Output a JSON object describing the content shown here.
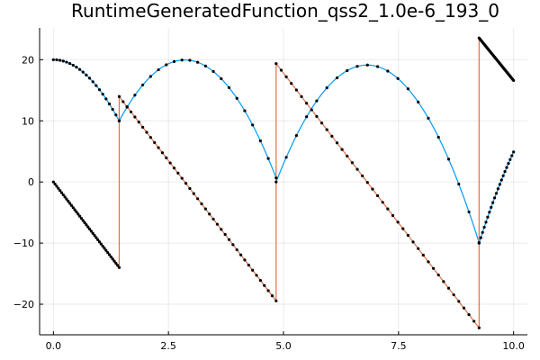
{
  "chart_data": {
    "type": "line",
    "title": "RuntimeGeneratedFunction_qss2_1.0e-6_193_0",
    "xlabel": "",
    "ylabel": "",
    "xlim": [
      -0.3,
      10.3
    ],
    "ylim": [
      -25,
      25.2
    ],
    "grid": true,
    "legend": "none",
    "x_ticks": [
      0,
      2.5,
      5,
      7.5,
      10
    ],
    "x_tick_labels": [
      "0.0",
      "2.5",
      "5.0",
      "7.5",
      "10.0"
    ],
    "y_ticks": [
      -20,
      -10,
      0,
      10,
      20
    ],
    "y_tick_labels": [
      "−20",
      "−10",
      "0",
      "10",
      "20"
    ],
    "marker_color": "#000000",
    "series": [
      {
        "color": "#009AFA",
        "segments": [
          {
            "x0": 0,
            "x1": 1.43,
            "v0": 0,
            "g": 9.8,
            "y0": 20
          },
          {
            "x0": 1.43,
            "x1": 4.84,
            "v0": 13.97,
            "g": 9.8,
            "y0": 10.0
          },
          {
            "x0": 4.84,
            "x1": 9.25,
            "v0": 19.36,
            "g": 9.8,
            "y0": 0.0
          },
          {
            "x0": 9.25,
            "x1": 10.0,
            "v0": 23.55,
            "g": 9.8,
            "y0": -10.0
          }
        ],
        "n_markers": 20
      },
      {
        "color": "#E26F46",
        "points": [
          [
            0,
            0
          ],
          [
            1.43,
            -14.0
          ],
          [
            1.43,
            13.97
          ],
          [
            4.84,
            -19.45
          ],
          [
            4.84,
            19.36
          ],
          [
            9.25,
            -23.86
          ],
          [
            9.25,
            23.55
          ],
          [
            10.0,
            16.6
          ]
        ],
        "n_markers": 40
      }
    ]
  }
}
